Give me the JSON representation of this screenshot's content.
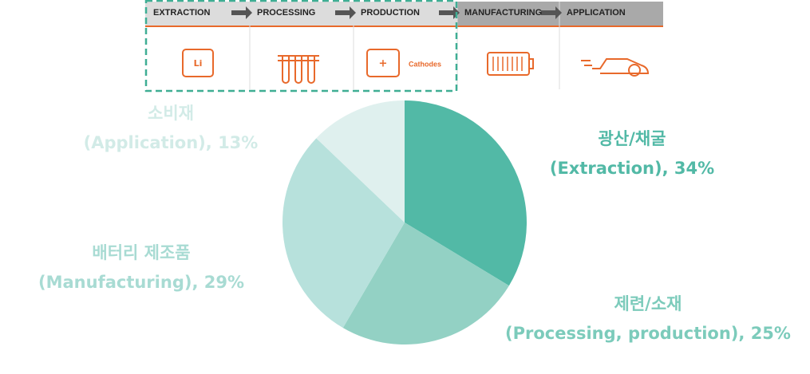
{
  "process_diagram": {
    "steps": [
      "EXTRACTION",
      "PROCESSING",
      "PRODUCTION",
      "MANUFACTURING",
      "APPLICATION"
    ],
    "li_icon": "Li",
    "plus_icon": "+",
    "cathodes": "Cathodes"
  },
  "chart_data": {
    "type": "pie",
    "categories": [
      "광산/채굴",
      "제련/소재",
      "배터리 제조품",
      "소비재"
    ],
    "values": [
      34,
      25,
      29,
      13
    ],
    "value_labels": [
      "(Extraction), 34%",
      "(Processing, production), 25%",
      "(Manufacturing), 29%",
      "(Application), 13%"
    ],
    "colors": [
      "#52b9a6",
      "#93d1c4",
      "#b7e1dc",
      "#dff0ee"
    ],
    "label_colors": [
      "#52b9a6",
      "#7ccbbb",
      "#a8dbd3",
      "#d2ebe7"
    ]
  }
}
